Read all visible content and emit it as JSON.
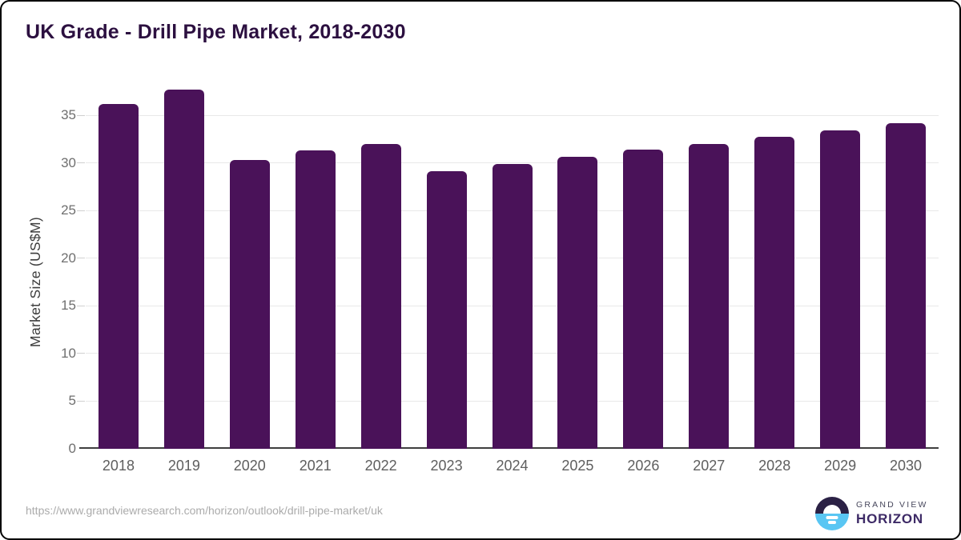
{
  "page": {
    "title": "UK Grade - Drill Pipe Market, 2018-2030",
    "source_url": "https://www.grandviewresearch.com/horizon/outlook/drill-pipe-market/uk"
  },
  "logo": {
    "line1": "GRAND VIEW",
    "line2": "HORIZON",
    "mark": "horizon-sun-over-water-icon"
  },
  "colors": {
    "bar": "#4a1259",
    "title_text": "#2c1040",
    "axis_tick_text": "#6f6f6f",
    "x_tick_text": "#5e5e5e",
    "y_axis_title_text": "#3d3d3d",
    "gridline": "#e8e8e8",
    "axis_line": "#3f3f3f",
    "url_text": "#ababab",
    "logo_dark": "#2b2145",
    "logo_blue": "#59c6f3",
    "frame_border": "#000000"
  },
  "chart_data": {
    "type": "bar",
    "title": "UK Grade - Drill Pipe Market, 2018-2030",
    "categories": [
      "2018",
      "2019",
      "2020",
      "2021",
      "2022",
      "2023",
      "2024",
      "2025",
      "2026",
      "2027",
      "2028",
      "2029",
      "2030"
    ],
    "values": [
      36.2,
      37.7,
      30.3,
      31.3,
      32.0,
      29.1,
      29.9,
      30.6,
      31.4,
      32.0,
      32.7,
      33.4,
      34.2
    ],
    "xlabel": "",
    "ylabel": "Market Size (US$M)",
    "ylim": [
      0,
      38
    ],
    "yticks": [
      0,
      5,
      10,
      15,
      20,
      25,
      30,
      35
    ],
    "grid": true,
    "legend": false,
    "bar_color": "#4a1259"
  }
}
